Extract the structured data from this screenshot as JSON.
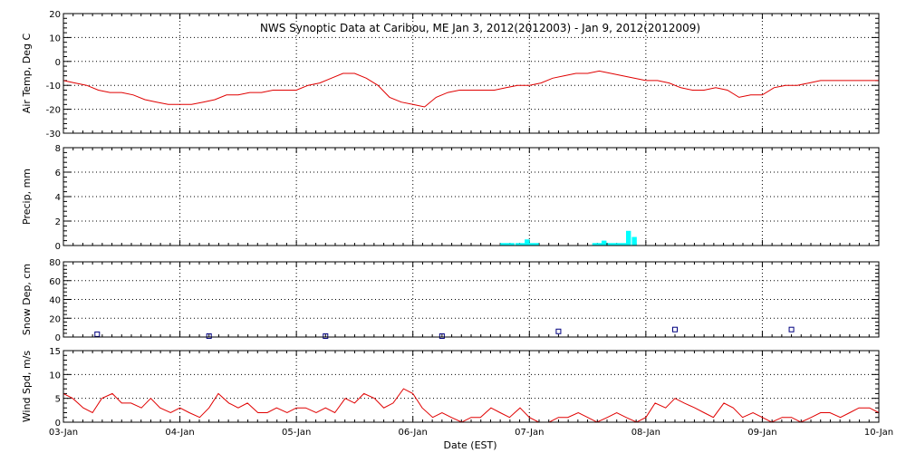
{
  "title": "NWS Synoptic Data at Caribou, ME   Jan  3, 2012(2012003) - Jan  9, 2012(2012009)",
  "xlabel": "Date (EST)",
  "colors": {
    "temp": "#e00000",
    "precip": "#00ffff",
    "snow": "#000080",
    "wind": "#e00000",
    "grid": "#000000",
    "frame": "#000000"
  },
  "chart_data": [
    {
      "id": "temp",
      "type": "line",
      "ylabel": "Air Temp, Deg C",
      "ylim": [
        -30,
        20
      ],
      "yticks": [
        -30,
        -20,
        -10,
        0,
        10,
        20
      ],
      "ytick_labels": [
        "-30",
        "-20",
        "-10",
        "0",
        "10",
        "20"
      ],
      "xlim": [
        0,
        7
      ],
      "x_tick_labels": [
        "03-Jan",
        "04-Jan",
        "05-Jan",
        "06-Jan",
        "07-Jan",
        "08-Jan",
        "09-Jan",
        "10-Jan"
      ],
      "grid": true,
      "series": [
        {
          "x": [
            0,
            0.1,
            0.2,
            0.3,
            0.4,
            0.5,
            0.6,
            0.7,
            0.8,
            0.9,
            1.0,
            1.1,
            1.2,
            1.3,
            1.4,
            1.5,
            1.6,
            1.7,
            1.8,
            1.9,
            2.0,
            2.1,
            2.2,
            2.3,
            2.4,
            2.5,
            2.6,
            2.7,
            2.8,
            2.9,
            3.0,
            3.1,
            3.2,
            3.3,
            3.4,
            3.5,
            3.6,
            3.7,
            3.8,
            3.9,
            4.0,
            4.1,
            4.2,
            4.3,
            4.4,
            4.5,
            4.6,
            4.7,
            4.8,
            4.9,
            5.0,
            5.1,
            5.2,
            5.3,
            5.4,
            5.5,
            5.6,
            5.7,
            5.8,
            5.9,
            6.0,
            6.1,
            6.2,
            6.3,
            6.4,
            6.5,
            6.6,
            6.7,
            6.8,
            6.9,
            7.0
          ],
          "y": [
            -8,
            -9,
            -10,
            -12,
            -13,
            -13,
            -14,
            -16,
            -17,
            -18,
            -18,
            -18,
            -17,
            -16,
            -14,
            -14,
            -13,
            -13,
            -12,
            -12,
            -12,
            -10,
            -9,
            -7,
            -5,
            -5,
            -7,
            -10,
            -15,
            -17,
            -18,
            -19,
            -15,
            -13,
            -12,
            -12,
            -12,
            -12,
            -11,
            -10,
            -10,
            -9,
            -7,
            -6,
            -5,
            -5,
            -4,
            -5,
            -6,
            -7,
            -8,
            -8,
            -9,
            -11,
            -12,
            -12,
            -11,
            -12,
            -15,
            -14,
            -14,
            -11,
            -10,
            -10,
            -9,
            -8,
            -8,
            -8,
            -8,
            -8,
            -8
          ]
        }
      ]
    },
    {
      "id": "precip",
      "type": "bar",
      "ylabel": "Precip, mm",
      "ylim": [
        0,
        8
      ],
      "yticks": [
        0,
        2,
        4,
        6,
        8
      ],
      "ytick_labels": [
        "0",
        "2",
        "4",
        "6",
        "8"
      ],
      "xlim": [
        0,
        7
      ],
      "grid": true,
      "bar_width": 0.042,
      "series": [
        {
          "x": [
            3.75,
            3.79,
            3.83,
            3.88,
            3.92,
            3.96,
            4.0,
            4.04,
            4.54,
            4.58,
            4.62,
            4.67,
            4.71,
            4.75,
            4.79,
            4.83,
            4.88
          ],
          "y": [
            0.2,
            0.2,
            0.2,
            0.2,
            0.2,
            0.5,
            0.2,
            0.2,
            0.2,
            0.2,
            0.4,
            0.2,
            0.2,
            0.2,
            0.2,
            1.2,
            0.7
          ]
        }
      ]
    },
    {
      "id": "snow",
      "type": "scatter",
      "ylabel": "Snow Dep, cm",
      "ylim": [
        0,
        80
      ],
      "yticks": [
        0,
        20,
        40,
        60,
        80
      ],
      "ytick_labels": [
        "0",
        "20",
        "40",
        "60",
        "80"
      ],
      "xlim": [
        0,
        7
      ],
      "grid": true,
      "series": [
        {
          "x": [
            0.29,
            1.25,
            2.25,
            3.25,
            4.25,
            5.25,
            6.25
          ],
          "y": [
            3,
            1,
            1,
            1,
            6,
            8,
            8
          ]
        }
      ]
    },
    {
      "id": "wind",
      "type": "line",
      "ylabel": "Wind Spd, m/s",
      "ylim": [
        0,
        15
      ],
      "yticks": [
        0,
        5,
        10,
        15
      ],
      "ytick_labels": [
        "0",
        "5",
        "10",
        "15"
      ],
      "xlim": [
        0,
        7
      ],
      "grid": true,
      "series": [
        {
          "x": [
            0,
            0.08,
            0.17,
            0.25,
            0.33,
            0.42,
            0.5,
            0.58,
            0.67,
            0.75,
            0.83,
            0.92,
            1.0,
            1.08,
            1.17,
            1.25,
            1.33,
            1.42,
            1.5,
            1.58,
            1.67,
            1.75,
            1.83,
            1.92,
            2.0,
            2.08,
            2.17,
            2.25,
            2.33,
            2.42,
            2.5,
            2.58,
            2.67,
            2.75,
            2.83,
            2.92,
            3.0,
            3.08,
            3.17,
            3.25,
            3.33,
            3.42,
            3.5,
            3.58,
            3.67,
            3.75,
            3.83,
            3.92,
            4.0,
            4.08,
            4.17,
            4.25,
            4.33,
            4.42,
            4.5,
            4.58,
            4.67,
            4.75,
            4.83,
            4.92,
            5.0,
            5.08,
            5.17,
            5.25,
            5.33,
            5.42,
            5.5,
            5.58,
            5.67,
            5.75,
            5.83,
            5.92,
            6.0,
            6.08,
            6.17,
            6.25,
            6.33,
            6.42,
            6.5,
            6.58,
            6.67,
            6.75,
            6.83,
            6.92,
            7.0
          ],
          "y": [
            6,
            5,
            3,
            2,
            5,
            6,
            4,
            4,
            3,
            5,
            3,
            2,
            3,
            2,
            1,
            3,
            6,
            4,
            3,
            4,
            2,
            2,
            3,
            2,
            3,
            3,
            2,
            3,
            2,
            5,
            4,
            6,
            5,
            3,
            4,
            7,
            6,
            3,
            1,
            2,
            1,
            0,
            1,
            1,
            3,
            2,
            1,
            3,
            1,
            0,
            0,
            1,
            1,
            2,
            1,
            0,
            1,
            2,
            1,
            0,
            1,
            4,
            3,
            5,
            4,
            3,
            2,
            1,
            4,
            3,
            1,
            2,
            1,
            0,
            1,
            1,
            0,
            1,
            2,
            2,
            1,
            2,
            3,
            3,
            2
          ]
        }
      ]
    }
  ]
}
